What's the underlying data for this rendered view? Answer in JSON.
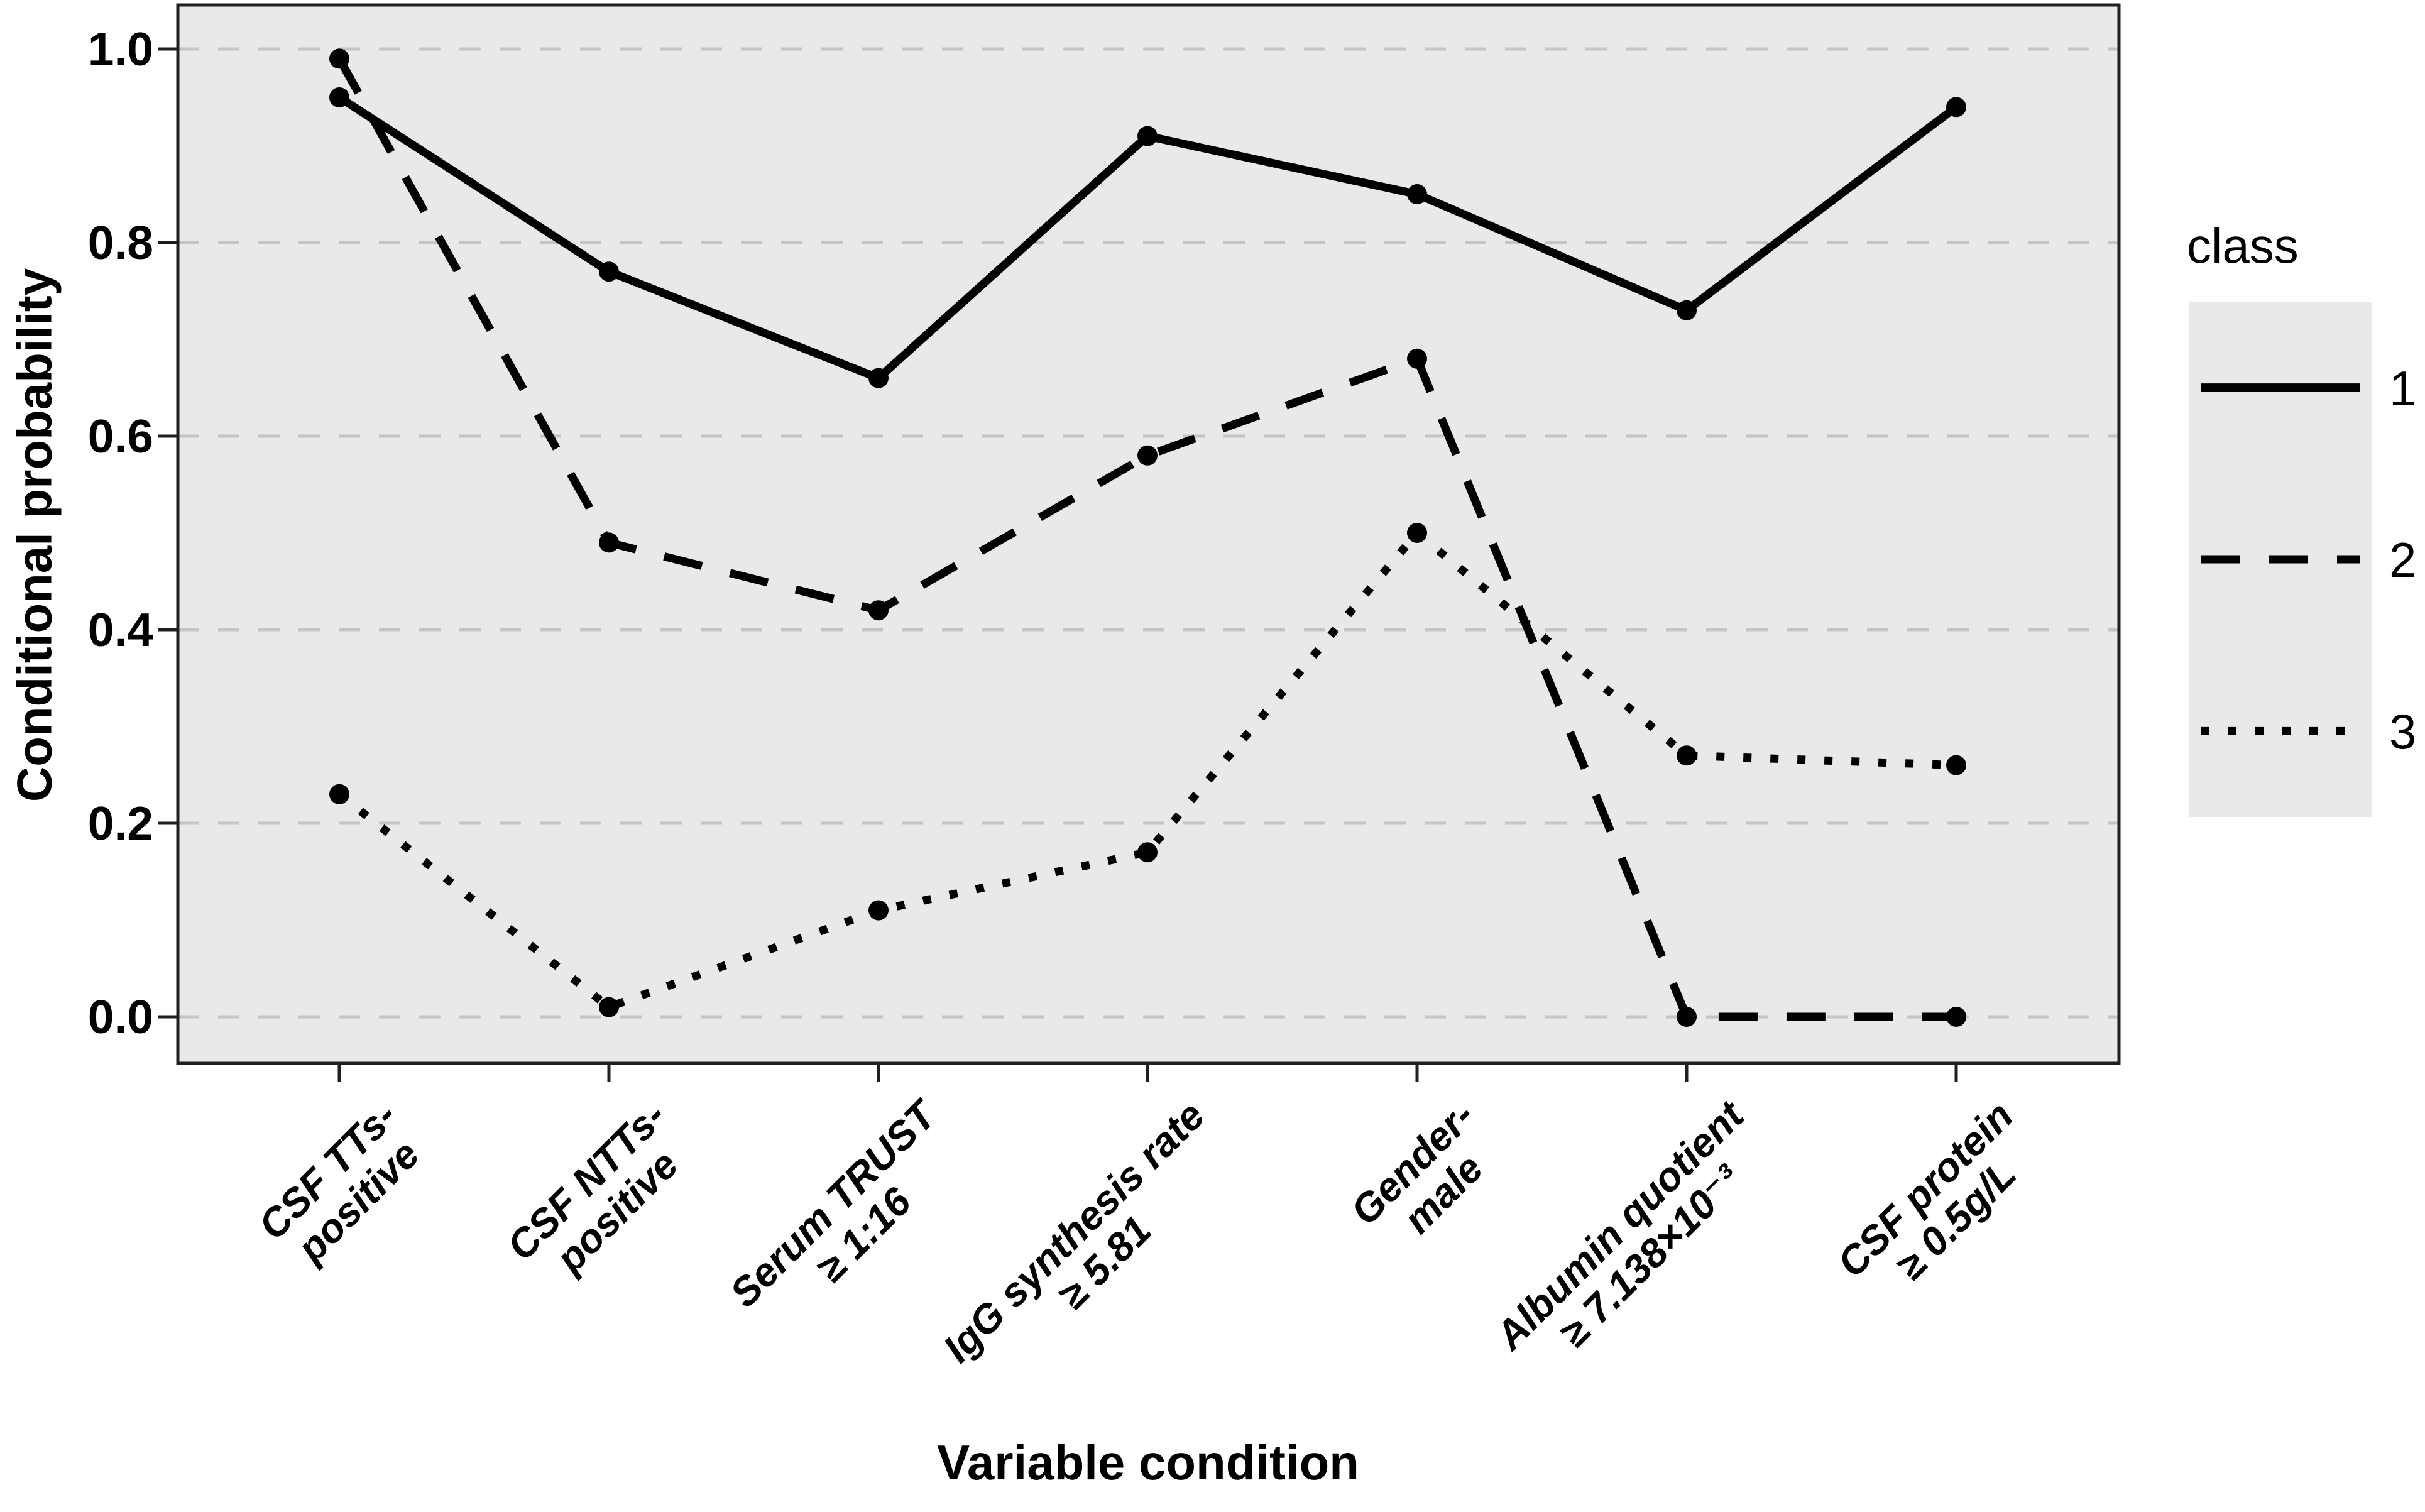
{
  "figure": {
    "background": "#ffffff"
  },
  "chart_data": {
    "type": "line",
    "title": "",
    "xlabel": "Variable condition",
    "ylabel": "Conditional probability",
    "ylim": [
      0,
      1
    ],
    "grid": "horizontal-dashed",
    "legend_position": "right",
    "y_ticks": {
      "values": [
        1.0,
        0.8,
        0.6,
        0.4,
        0.2,
        0.0
      ],
      "labels": [
        "1.0",
        "0.8",
        "0.6",
        "0.4",
        "0.2",
        "0.0"
      ]
    },
    "categories": [
      [
        "CSF TTs-",
        "positive"
      ],
      [
        "CSF NTTs-",
        "positive"
      ],
      [
        "Serum TRUST",
        "≥ 1:16"
      ],
      [
        "IgG synthesis rate",
        "≥ 5.81"
      ],
      [
        "Gender-",
        "male"
      ],
      [
        "Albumin quotient",
        "≥ 7.138×10⁻³"
      ],
      [
        "CSF protein",
        "≥ 0.5g/L"
      ]
    ],
    "series": [
      {
        "name": "1",
        "linestyle": "solid",
        "values": [
          0.95,
          0.77,
          0.66,
          0.91,
          0.85,
          0.73,
          0.94
        ]
      },
      {
        "name": "2",
        "linestyle": "dashed",
        "values": [
          0.99,
          0.49,
          0.42,
          0.58,
          0.68,
          0.0,
          0.0
        ]
      },
      {
        "name": "3",
        "linestyle": "dotted",
        "values": [
          0.23,
          0.01,
          0.11,
          0.17,
          0.5,
          0.27,
          0.26
        ]
      }
    ],
    "legend": {
      "title": "class",
      "entries": [
        "1",
        "2",
        "3"
      ]
    },
    "colors": {
      "line": "#000000",
      "marker": "#000000",
      "panel_background": "#e9e9e9",
      "gridline": "#c4c4c4",
      "panel_border": "#1f1f1f",
      "text": "#000000",
      "legend_key_background": "#e9e9e9"
    }
  }
}
